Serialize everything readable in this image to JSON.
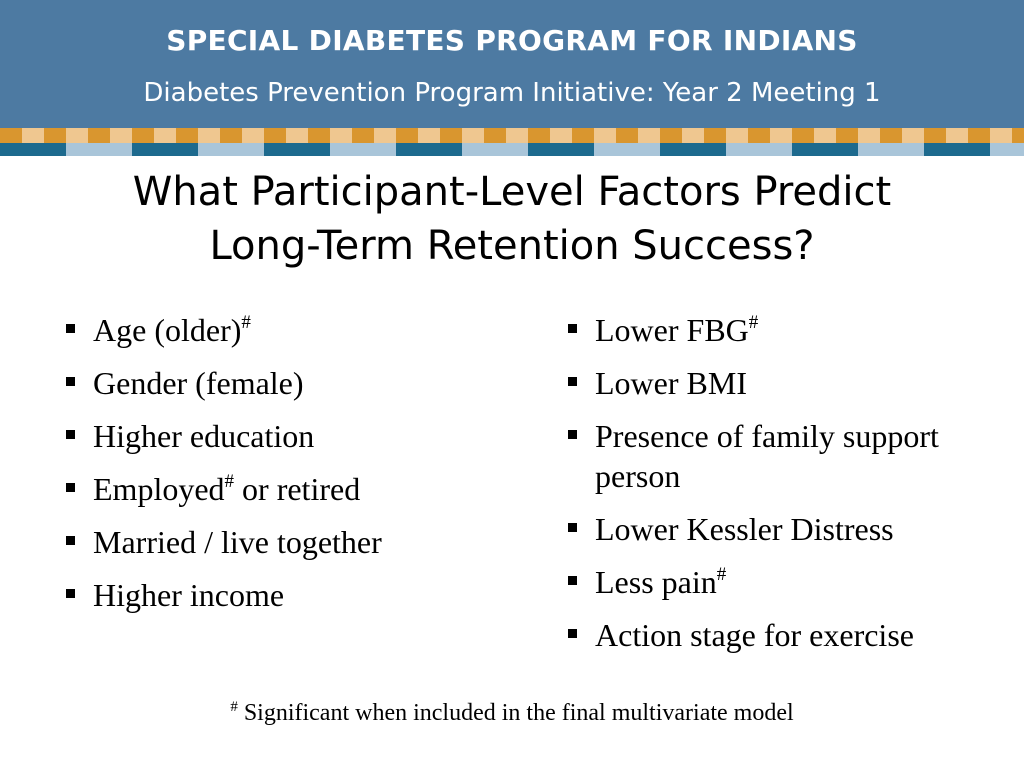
{
  "header": {
    "title": "SPECIAL DIABETES PROGRAM FOR INDIANS",
    "subtitle": "Diabetes Prevention Program Initiative:  Year 2 Meeting 1"
  },
  "slide": {
    "title_line1": "What Participant-Level Factors Predict",
    "title_line2": "Long-Term Retention Success?"
  },
  "left_bullets": [
    {
      "text": "Age (older)",
      "mark": "#",
      "after": ""
    },
    {
      "text": "Gender (female)",
      "mark": "",
      "after": ""
    },
    {
      "text": "Higher education",
      "mark": "",
      "after": ""
    },
    {
      "text": "Employed",
      "mark": "#",
      "after": " or retired"
    },
    {
      "text": "Married / live together",
      "mark": "",
      "after": ""
    },
    {
      "text": "Higher income",
      "mark": "",
      "after": ""
    }
  ],
  "right_bullets": [
    {
      "text": "Lower FBG",
      "mark": "#",
      "after": ""
    },
    {
      "text": "Lower BMI",
      "mark": "",
      "after": ""
    },
    {
      "text": "Presence of family support person",
      "mark": "",
      "after": ""
    },
    {
      "text": "Lower Kessler Distress",
      "mark": "",
      "after": ""
    },
    {
      "text": "Less pain",
      "mark": "#",
      "after": ""
    },
    {
      "text": "Action stage for exercise",
      "mark": "",
      "after": ""
    }
  ],
  "footnote": {
    "mark": "#",
    "text": " Significant when included in the final multivariate model"
  },
  "colors": {
    "header_bg": "#4d7aa2",
    "stripe_orange": "#d9962f",
    "stripe_light_orange": "#efc790",
    "stripe_teal": "#1d6a8e",
    "stripe_light_blue": "#a9c5d9"
  }
}
